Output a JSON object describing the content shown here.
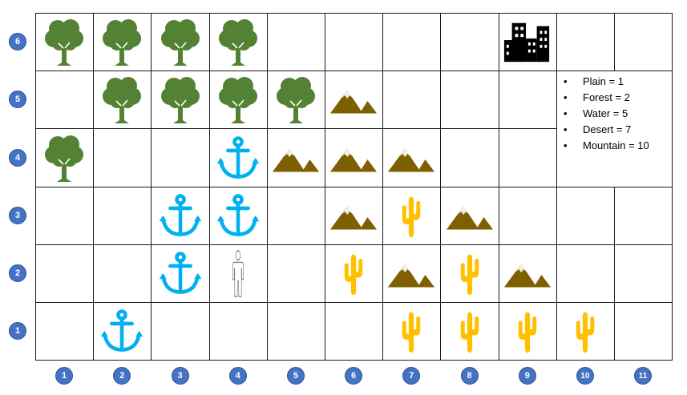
{
  "grid": {
    "columns": [
      "1",
      "2",
      "3",
      "4",
      "5",
      "6",
      "7",
      "8",
      "9",
      "10",
      "11"
    ],
    "rows": [
      "6",
      "5",
      "4",
      "3",
      "2",
      "1"
    ],
    "tiles": [
      {
        "col": 1,
        "row": 6,
        "type": "forest"
      },
      {
        "col": 2,
        "row": 6,
        "type": "forest"
      },
      {
        "col": 3,
        "row": 6,
        "type": "forest"
      },
      {
        "col": 4,
        "row": 6,
        "type": "forest"
      },
      {
        "col": 9,
        "row": 6,
        "type": "city"
      },
      {
        "col": 2,
        "row": 5,
        "type": "forest"
      },
      {
        "col": 3,
        "row": 5,
        "type": "forest"
      },
      {
        "col": 4,
        "row": 5,
        "type": "forest"
      },
      {
        "col": 5,
        "row": 5,
        "type": "forest"
      },
      {
        "col": 6,
        "row": 5,
        "type": "mountain"
      },
      {
        "col": 1,
        "row": 4,
        "type": "forest"
      },
      {
        "col": 4,
        "row": 4,
        "type": "water"
      },
      {
        "col": 5,
        "row": 4,
        "type": "mountain"
      },
      {
        "col": 6,
        "row": 4,
        "type": "mountain"
      },
      {
        "col": 7,
        "row": 4,
        "type": "mountain"
      },
      {
        "col": 3,
        "row": 3,
        "type": "water"
      },
      {
        "col": 4,
        "row": 3,
        "type": "water"
      },
      {
        "col": 6,
        "row": 3,
        "type": "mountain"
      },
      {
        "col": 7,
        "row": 3,
        "type": "desert"
      },
      {
        "col": 8,
        "row": 3,
        "type": "mountain"
      },
      {
        "col": 3,
        "row": 2,
        "type": "water"
      },
      {
        "col": 4,
        "row": 2,
        "type": "person"
      },
      {
        "col": 6,
        "row": 2,
        "type": "desert"
      },
      {
        "col": 7,
        "row": 2,
        "type": "mountain"
      },
      {
        "col": 8,
        "row": 2,
        "type": "desert"
      },
      {
        "col": 9,
        "row": 2,
        "type": "mountain"
      },
      {
        "col": 2,
        "row": 1,
        "type": "water"
      },
      {
        "col": 7,
        "row": 1,
        "type": "desert"
      },
      {
        "col": 8,
        "row": 1,
        "type": "desert"
      },
      {
        "col": 9,
        "row": 1,
        "type": "desert"
      },
      {
        "col": 10,
        "row": 1,
        "type": "desert"
      }
    ],
    "icons": {
      "forest": "tree-icon",
      "mountain": "mountain-icon",
      "water": "anchor-icon",
      "desert": "cactus-icon",
      "person": "person-icon",
      "city": "city-buildings-icon"
    }
  },
  "legend": [
    "Plain = 1",
    "Forest = 2",
    "Water = 5",
    "Desert = 7",
    "Mountain = 10"
  ],
  "colors": {
    "forest": "#548235",
    "mountain": "#7f6000",
    "water": "#00b0f0",
    "desert": "#ffc000",
    "person": "#7f7f7f",
    "city": "#000000",
    "badge": "#4472c4",
    "grid_line": "#1a1a1a"
  }
}
